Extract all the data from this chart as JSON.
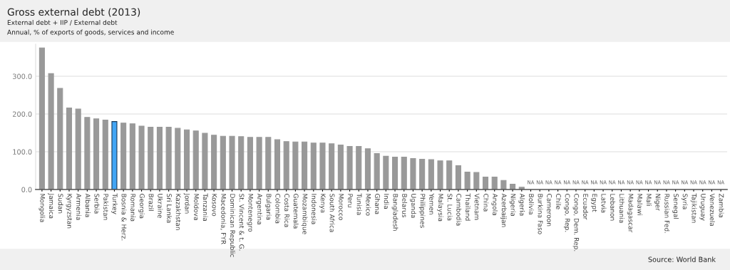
{
  "chart_data": {
    "type": "bar",
    "title": "Gross external debt (2013)",
    "subtitle": "External debt + IIP / External debt\nAnnual, % of exports of goods, services and income",
    "categories": [
      "Mongolia",
      "Jamaica",
      "Sudan",
      "Kyrgyzstan",
      "Armenia",
      "Albania",
      "Serbia",
      "Pakistan",
      "Turkey",
      "Bosnia & Herz.",
      "Romania",
      "Georgia",
      "Brazil",
      "Ukraine",
      "Sri Lanka",
      "Kazakhstan",
      "Jordan",
      "Moldova",
      "Tanzania",
      "Kosovo",
      "Macedonia, FYR",
      "Dominican Republic",
      "St. Vincent & t. G.",
      "Montenegro",
      "Argentina",
      "Bulgaria",
      "Colombia",
      "Costa Rica",
      "Guatemala",
      "Mozambique",
      "Indonesia",
      "Kenya",
      "South Africa",
      "Morocco",
      "Peru",
      "Tunisia",
      "Mexico",
      "Ghana",
      "India",
      "Bangladesh",
      "Belarus",
      "Uganda",
      "Philippines",
      "Yemen",
      "Malaysia",
      "St. Lucia",
      "Cambodia",
      "Thailand",
      "Vietnam",
      "China",
      "Angola",
      "Azerbaijan",
      "Nigeria",
      "Algeria",
      "Bolivia",
      "Burkina Faso",
      "Cameroon",
      "Chile",
      "Congo, Rep.",
      "Congo, Dem. Rep.",
      "Ecuador",
      "Egypt",
      "Latvia",
      "Lebanon",
      "Lithuania",
      "Madagascar",
      "Malawi",
      "Mali",
      "Niger",
      "Russian Fed.",
      "Senegal",
      "Syria",
      "Tajikistan",
      "Uruguay",
      "Venezuela",
      "Zambia"
    ],
    "values": [
      375,
      307,
      268,
      216,
      213,
      191,
      187,
      184,
      180,
      176,
      174,
      168,
      165,
      165,
      165,
      162,
      158,
      155,
      149,
      144,
      141,
      141,
      140,
      138,
      138,
      138,
      132,
      127,
      126,
      126,
      123,
      123,
      121,
      118,
      114,
      114,
      108,
      95,
      88,
      86,
      86,
      82,
      80,
      79,
      76,
      76,
      63,
      46,
      45,
      33,
      33,
      24,
      14,
      6,
      null,
      null,
      null,
      null,
      null,
      null,
      null,
      null,
      null,
      null,
      null,
      null,
      null,
      null,
      null,
      null,
      null,
      null,
      null,
      null,
      null,
      null
    ],
    "value_labels": [
      null,
      null,
      null,
      null,
      null,
      null,
      null,
      null,
      null,
      null,
      null,
      null,
      null,
      null,
      null,
      null,
      null,
      null,
      null,
      null,
      null,
      null,
      null,
      null,
      null,
      null,
      null,
      null,
      null,
      null,
      null,
      null,
      null,
      null,
      null,
      null,
      null,
      null,
      null,
      null,
      null,
      null,
      null,
      null,
      null,
      null,
      null,
      null,
      null,
      null,
      null,
      null,
      null,
      null,
      "NA",
      "NA",
      "NA",
      "NA",
      "NA",
      "NA",
      "NA",
      "NA",
      "NA",
      "NA",
      "NA",
      "NA",
      "NA",
      "NA",
      "NA",
      "NA",
      "NA",
      "NA",
      "NA",
      "NA",
      "NA",
      "NA"
    ],
    "colors": [
      "#999999",
      "#999999",
      "#999999",
      "#999999",
      "#999999",
      "#999999",
      "#999999",
      "#999999",
      "#42a5f5",
      "#999999",
      "#999999",
      "#999999",
      "#999999",
      "#999999",
      "#999999",
      "#999999",
      "#999999",
      "#999999",
      "#999999",
      "#999999",
      "#999999",
      "#999999",
      "#999999",
      "#999999",
      "#999999",
      "#999999",
      "#999999",
      "#999999",
      "#999999",
      "#999999",
      "#999999",
      "#999999",
      "#999999",
      "#999999",
      "#999999",
      "#999999",
      "#999999",
      "#999999",
      "#999999",
      "#999999",
      "#999999",
      "#999999",
      "#999999",
      "#999999",
      "#999999",
      "#999999",
      "#999999",
      "#999999",
      "#999999",
      "#999999",
      "#999999",
      "#999999",
      "#999999",
      "#999999",
      "#999999",
      "#999999",
      "#999999",
      "#999999",
      "#999999",
      "#999999",
      "#999999",
      "#999999",
      "#999999",
      "#999999",
      "#999999",
      "#999999",
      "#999999",
      "#999999",
      "#999999",
      "#999999",
      "#999999",
      "#999999",
      "#999999",
      "#999999",
      "#999999",
      "#999999"
    ],
    "ylim": [
      0,
      385
    ],
    "yticks": [
      {
        "value": 0,
        "label": "0.0"
      },
      {
        "value": 100,
        "label": "100.0"
      },
      {
        "value": 200,
        "label": "200.0"
      },
      {
        "value": 300,
        "label": "300.0"
      }
    ],
    "grid": "y",
    "legend": false,
    "annotations": [
      "Source: World Bank"
    ]
  }
}
